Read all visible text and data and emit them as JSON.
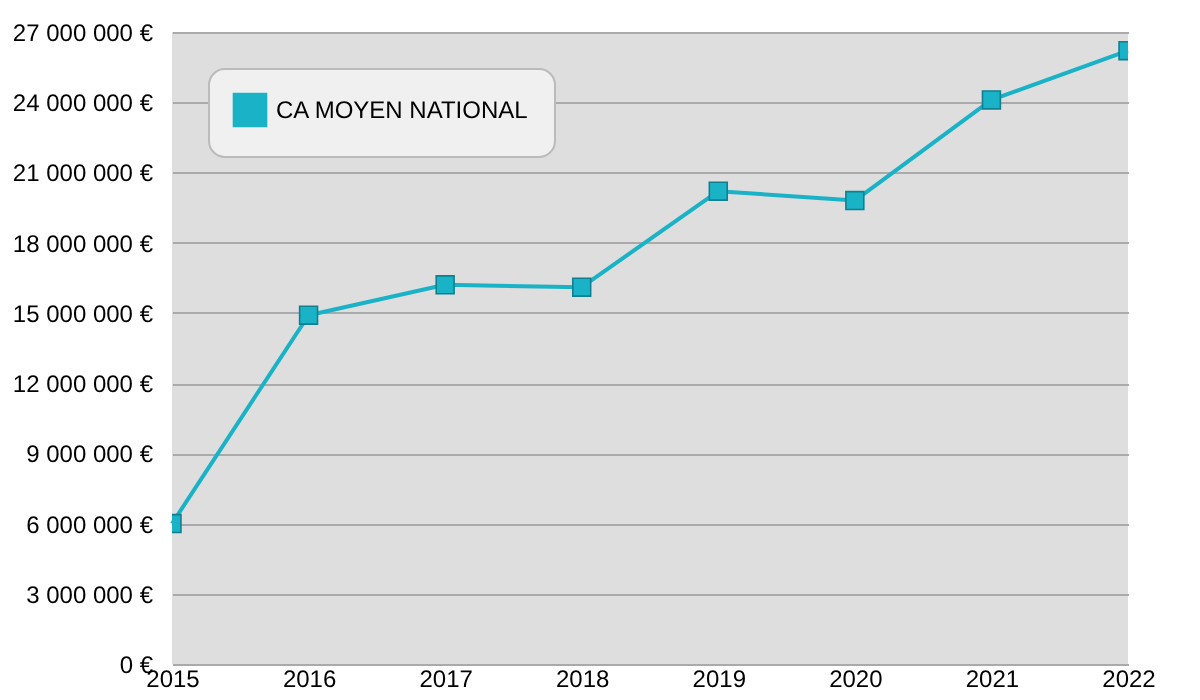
{
  "chart_data": {
    "type": "line",
    "categories": [
      "2015",
      "2016",
      "2017",
      "2018",
      "2019",
      "2020",
      "2021",
      "2022"
    ],
    "series": [
      {
        "name": "CA MOYEN NATIONAL",
        "color": "#1ab2c6",
        "values": [
          6000000,
          14900000,
          16200000,
          16100000,
          20200000,
          19800000,
          24100000,
          26200000
        ]
      }
    ],
    "ylim": [
      0,
      27000000
    ],
    "yticks": [
      {
        "value": 0,
        "label": "0 €"
      },
      {
        "value": 3000000,
        "label": "3 000 000 €"
      },
      {
        "value": 6000000,
        "label": "6 000 000 €"
      },
      {
        "value": 9000000,
        "label": "9 000 000 €"
      },
      {
        "value": 12000000,
        "label": "12 000 000 €"
      },
      {
        "value": 15000000,
        "label": "15 000 000 €"
      },
      {
        "value": 18000000,
        "label": "18 000 000 €"
      },
      {
        "value": 21000000,
        "label": "21 000 000 €"
      },
      {
        "value": 24000000,
        "label": "24 000 000 €"
      },
      {
        "value": 27000000,
        "label": "27 000 000 €"
      }
    ],
    "grid": "y",
    "legend": "top left",
    "marker": "square",
    "line_style": "solid"
  }
}
